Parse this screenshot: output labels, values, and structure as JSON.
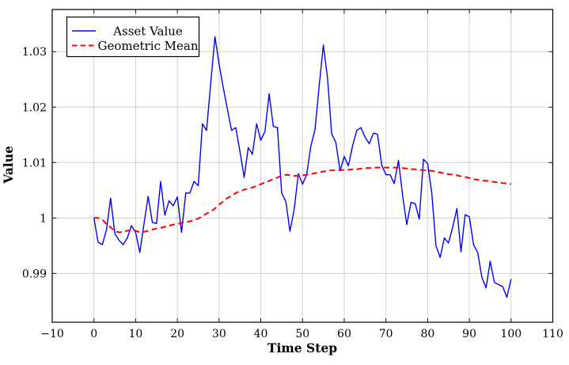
{
  "figure": {
    "background": "#ffffff",
    "frame_color": "#000000",
    "grid_color": "#d2d2d2",
    "tick_color": "#000000"
  },
  "chart_data": {
    "type": "line",
    "title": "",
    "xlabel": "Time Step",
    "ylabel": "Value",
    "xlim": [
      -10,
      110
    ],
    "ylim": [
      0.9812,
      1.0376
    ],
    "grid": true,
    "legend_position": "top-left",
    "x_ticks": [
      -10,
      0,
      10,
      20,
      30,
      40,
      50,
      60,
      70,
      80,
      90,
      100,
      110
    ],
    "x_tick_labels": [
      "−10",
      "0",
      "10",
      "20",
      "30",
      "40",
      "50",
      "60",
      "70",
      "80",
      "90",
      "100",
      "110"
    ],
    "y_ticks": [
      0.99,
      1.0,
      1.01,
      1.02,
      1.03
    ],
    "y_tick_labels": [
      "0.99",
      "1",
      "1.01",
      "1.02",
      "1.03"
    ],
    "x": [
      0,
      1,
      2,
      3,
      4,
      5,
      6,
      7,
      8,
      9,
      10,
      11,
      12,
      13,
      14,
      15,
      16,
      17,
      18,
      19,
      20,
      21,
      22,
      23,
      24,
      25,
      26,
      27,
      28,
      29,
      30,
      31,
      32,
      33,
      34,
      35,
      36,
      37,
      38,
      39,
      40,
      41,
      42,
      43,
      44,
      45,
      46,
      47,
      48,
      49,
      50,
      51,
      52,
      53,
      54,
      55,
      56,
      57,
      58,
      59,
      60,
      61,
      62,
      63,
      64,
      65,
      66,
      67,
      68,
      69,
      70,
      71,
      72,
      73,
      74,
      75,
      76,
      77,
      78,
      79,
      80,
      81,
      82,
      83,
      84,
      85,
      86,
      87,
      88,
      89,
      90,
      91,
      92,
      93,
      94,
      95,
      96,
      97,
      98,
      99,
      100
    ],
    "series": [
      {
        "name": "Asset Value",
        "color": "#0000ff",
        "style": "solid",
        "width": 1.4,
        "values": [
          1.0,
          0.9956,
          0.9952,
          0.9978,
          1.0036,
          0.9972,
          0.996,
          0.9952,
          0.9964,
          0.9986,
          0.9974,
          0.9938,
          0.999,
          1.0039,
          0.9992,
          0.999,
          1.0066,
          1.0005,
          1.0031,
          1.0022,
          1.0038,
          0.9974,
          1.0045,
          1.0045,
          1.0066,
          1.0058,
          1.017,
          1.0158,
          1.0243,
          1.0327,
          1.0278,
          1.0235,
          1.0196,
          1.0158,
          1.0163,
          1.012,
          1.0073,
          1.0127,
          1.0115,
          1.017,
          1.014,
          1.0156,
          1.0224,
          1.0165,
          1.0163,
          1.0045,
          1.003,
          0.9976,
          1.0015,
          1.008,
          1.0061,
          1.0078,
          1.013,
          1.016,
          1.0238,
          1.0312,
          1.0252,
          1.0152,
          1.0136,
          1.0085,
          1.0111,
          1.0094,
          1.013,
          1.0158,
          1.0163,
          1.0146,
          1.0134,
          1.0153,
          1.0151,
          1.0095,
          1.0078,
          1.0078,
          1.0062,
          1.0104,
          1.004,
          0.9988,
          1.0028,
          1.0026,
          0.9998,
          1.0106,
          1.0098,
          1.0045,
          0.995,
          0.9929,
          0.9964,
          0.9955,
          0.9983,
          1.0017,
          0.9939,
          1.0006,
          1.0002,
          0.9952,
          0.9938,
          0.9893,
          0.9874,
          0.9922,
          0.9884,
          0.988,
          0.9876,
          0.9857,
          0.989
        ]
      },
      {
        "name": "Geometric Mean",
        "color": "#ff0000",
        "style": "dashed",
        "width": 2,
        "values": [
          1.0,
          1.0,
          0.9997,
          0.9989,
          0.9983,
          0.9976,
          0.9974,
          0.9975,
          0.9977,
          0.9978,
          0.9977,
          0.9974,
          0.9975,
          0.9977,
          0.9979,
          0.9981,
          0.9982,
          0.9984,
          0.9986,
          0.9988,
          0.9989,
          0.9991,
          0.9993,
          0.9994,
          0.9996,
          0.9999,
          1.0003,
          1.0008,
          1.0012,
          1.0017,
          1.0024,
          1.003,
          1.0036,
          1.004,
          1.0045,
          1.0048,
          1.0051,
          1.0053,
          1.0055,
          1.0058,
          1.0061,
          1.0064,
          1.0067,
          1.007,
          1.0073,
          1.0076,
          1.0078,
          1.0077,
          1.0076,
          1.0076,
          1.0077,
          1.0078,
          1.0079,
          1.0081,
          1.0082,
          1.0084,
          1.0085,
          1.0086,
          1.0086,
          1.0086,
          1.0087,
          1.0087,
          1.0088,
          1.0088,
          1.0089,
          1.009,
          1.009,
          1.0091,
          1.0091,
          1.0091,
          1.0091,
          1.0091,
          1.0091,
          1.0091,
          1.009,
          1.0089,
          1.0088,
          1.0088,
          1.0087,
          1.0086,
          1.0086,
          1.0085,
          1.0084,
          1.0082,
          1.0081,
          1.0079,
          1.0078,
          1.0077,
          1.0075,
          1.0074,
          1.0072,
          1.007,
          1.0069,
          1.0068,
          1.0067,
          1.0066,
          1.0065,
          1.0064,
          1.0063,
          1.0062,
          1.0061
        ]
      }
    ]
  }
}
